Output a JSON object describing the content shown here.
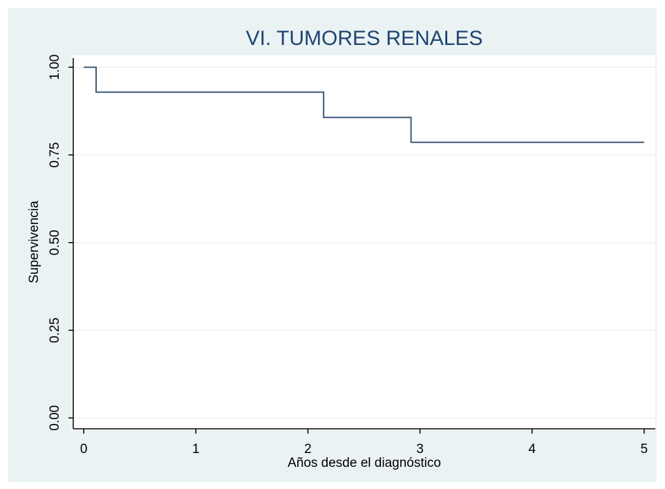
{
  "chart_data": {
    "type": "line",
    "step": "post",
    "title": "VI. TUMORES RENALES",
    "x_label": "Años desde el diagnóstico",
    "y_label": "Supervivencia",
    "series": [
      {
        "color": "#3d5a78",
        "x": [
          0,
          0.11,
          2.14,
          2.92,
          5
        ],
        "values": [
          1,
          0.929,
          0.857,
          0.786,
          0.786
        ]
      }
    ],
    "xlim": [
      -0.1,
      5.1
    ],
    "xticks": [
      0,
      1,
      2,
      3,
      4,
      5
    ],
    "ylim": [
      -0.035,
      1.034
    ],
    "yticks": [
      {
        "value": 0,
        "label": "0.00"
      },
      {
        "value": 0.25,
        "label": "0.25"
      },
      {
        "value": 0.5,
        "label": "0.50"
      },
      {
        "value": 0.75,
        "label": "0.75"
      },
      {
        "value": 1,
        "label": "1.00"
      }
    ],
    "grid": true
  }
}
